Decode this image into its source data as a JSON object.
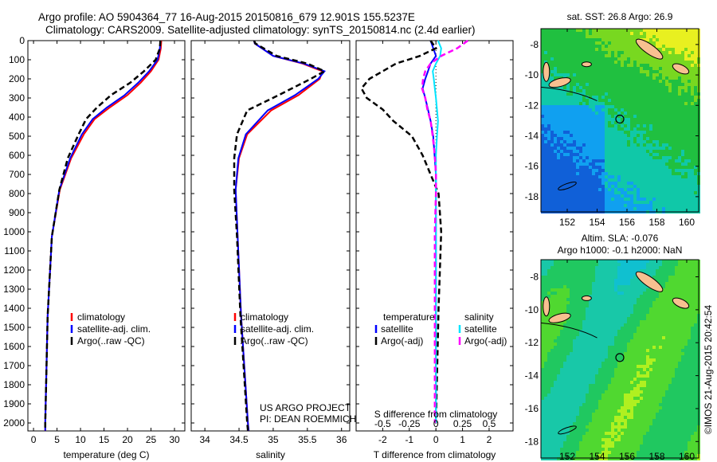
{
  "title": {
    "line1": "Argo profile: AO 5904364_77 16-Aug-2015 20150816_679 12.901S 155.5237E",
    "line2": "Climatology: CARS2009. Satellite-adjusted climatology: synTS_20150814.nc (2.4d earlier)"
  },
  "credit": "©IMOS 21-Aug-2015 20:42:54",
  "colors": {
    "climatology": "#ff0000",
    "satellite": "#0000ff",
    "argo": "#000000",
    "sal_satellite": "#00e5ff",
    "sal_argo": "#ff00ff"
  },
  "depth_ticks": [
    "0",
    "100",
    "200",
    "300",
    "400",
    "500",
    "600",
    "700",
    "800",
    "900",
    "1000",
    "1100",
    "1200",
    "1300",
    "1400",
    "1500",
    "1600",
    "1700",
    "1800",
    "1900",
    "2000"
  ],
  "chart_data": [
    {
      "type": "line",
      "xlabel": "temperature (deg C)",
      "xlim": [
        -1.2,
        32.2
      ],
      "ylim": [
        2040,
        0
      ],
      "xticks": [
        "0",
        "5",
        "10",
        "15",
        "20",
        "25",
        "30"
      ],
      "legend": [
        "climatology",
        "satellite-adj. clim.",
        "Argo(..raw -QC)"
      ],
      "depth": [
        0,
        40,
        100,
        160,
        220,
        285,
        350,
        410,
        490,
        615,
        780,
        1025,
        1440,
        2000,
        2040
      ],
      "series": [
        {
          "name": "climatology",
          "values": [
            27.2,
            27.1,
            26.6,
            25.0,
            22.8,
            20.0,
            16.2,
            13.0,
            10.7,
            8.0,
            5.6,
            3.9,
            3.0,
            2.5,
            2.5
          ]
        },
        {
          "name": "satellite-adj. clim.",
          "values": [
            27.0,
            26.9,
            26.4,
            24.6,
            22.3,
            19.4,
            15.6,
            12.6,
            10.3,
            7.8,
            5.5,
            3.9,
            3.0,
            2.5,
            2.5
          ]
        },
        {
          "name": "Argo(..raw -QC)",
          "values": [
            27.0,
            26.9,
            26.0,
            23.5,
            20.6,
            16.5,
            13.5,
            11.2,
            9.6,
            7.3,
            5.5,
            3.9,
            3.0,
            2.5,
            2.5
          ]
        }
      ]
    },
    {
      "type": "line",
      "xlabel": "salinity",
      "xlim": [
        33.8,
        36.12
      ],
      "ylim": [
        2040,
        0
      ],
      "xticks": [
        "34",
        "34.5",
        "35",
        "35.5",
        "36"
      ],
      "legend": [
        "climatology",
        "satellite-adj. clim.",
        "Argo(..raw -QC)"
      ],
      "annotation": [
        "US ARGO PROJECT",
        "PI: DEAN ROEMMICH"
      ],
      "depth": [
        0,
        15,
        80,
        120,
        160,
        200,
        285,
        365,
        490,
        615,
        780,
        1025,
        1440,
        2000,
        2040
      ],
      "series": [
        {
          "name": "climatology",
          "values": [
            34.72,
            34.73,
            35.0,
            35.43,
            35.72,
            35.68,
            35.37,
            34.97,
            34.62,
            34.5,
            34.45,
            34.48,
            34.53,
            34.63,
            34.64
          ]
        },
        {
          "name": "satellite-adj. clim.",
          "values": [
            34.72,
            34.73,
            35.0,
            35.45,
            35.75,
            35.66,
            35.32,
            34.92,
            34.6,
            34.49,
            34.45,
            34.48,
            34.53,
            34.63,
            34.64
          ]
        },
        {
          "name": "Argo(..raw -QC)",
          "values": [
            34.72,
            34.74,
            35.05,
            35.5,
            35.75,
            35.55,
            35.08,
            34.62,
            34.47,
            34.43,
            34.43,
            34.47,
            34.52,
            34.62,
            34.63
          ]
        }
      ]
    },
    {
      "type": "line",
      "xlabel": "T difference from climatology",
      "xlabel2": "S difference from climatology",
      "xlim": [
        -3.0,
        2.9
      ],
      "ylim": [
        2040,
        0
      ],
      "xticks": [
        "-2",
        "-1",
        "0",
        "1",
        "2"
      ],
      "xticks2": [
        "-0.5",
        "-0.25",
        "0",
        "0.25",
        "0.5"
      ],
      "legend_temp": [
        "temperature",
        "satellite",
        "Argo(-adj)"
      ],
      "legend_sal": [
        "salinity",
        "satellite",
        "Argo(-adj)"
      ],
      "depth": [
        0,
        40,
        80,
        120,
        160,
        200,
        250,
        300,
        360,
        420,
        500,
        600,
        700,
        800,
        1000,
        1400,
        2000
      ],
      "series": [
        {
          "name": "temperature satellite",
          "values": [
            -0.2,
            -0.1,
            0.0,
            -0.2,
            -0.3,
            -0.4,
            -0.5,
            -0.4,
            -0.3,
            -0.2,
            -0.1,
            -0.05,
            0,
            0,
            0,
            0,
            0
          ]
        },
        {
          "name": "temperature Argo(-adj)",
          "values": [
            -0.2,
            0.0,
            -0.6,
            -1.5,
            -2.0,
            -2.5,
            -2.8,
            -2.6,
            -2.0,
            -1.6,
            -0.9,
            -0.5,
            -0.2,
            0.1,
            0.2,
            0.1,
            0.0
          ]
        },
        {
          "name": "salinity satellite",
          "values": [
            0.02,
            0.05,
            0.04,
            0.0,
            -0.03,
            -0.02,
            -0.01,
            0.0,
            0.01,
            0.02,
            0.01,
            0.0,
            0,
            0,
            0,
            0,
            0
          ]
        },
        {
          "name": "salinity Argo(-adj)",
          "values": [
            0.3,
            0.2,
            0.05,
            -0.05,
            -0.1,
            -0.12,
            -0.13,
            -0.1,
            -0.08,
            -0.05,
            -0.03,
            -0.01,
            0,
            0,
            -0.01,
            -0.01,
            -0.01
          ]
        }
      ]
    }
  ],
  "maps": [
    {
      "title": "sat. SST: 26.8 Argo: 26.9",
      "lon_ticks": [
        "152",
        "154",
        "156",
        "158",
        "160"
      ],
      "lat_ticks": [
        "-8",
        "-10",
        "-12",
        "-14",
        "-16",
        "-18"
      ]
    },
    {
      "title": "Altim. SLA: -0.076",
      "subtitle": "Argo h1000: -0.1 h2000: NaN",
      "lon_ticks": [
        "152",
        "154",
        "156",
        "158",
        "160"
      ],
      "lat_ticks": [
        "-8",
        "-10",
        "-12",
        "-14",
        "-16",
        "-18"
      ]
    }
  ]
}
